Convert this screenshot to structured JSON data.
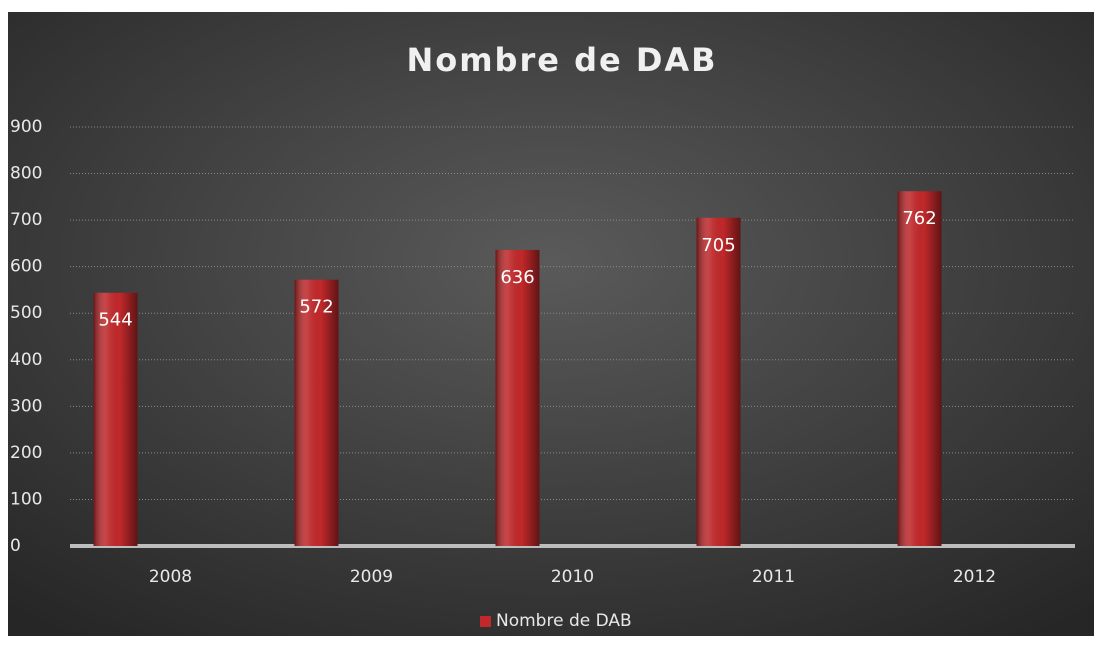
{
  "chart_data": {
    "type": "bar",
    "title": "Nombre de DAB",
    "categories": [
      "2008",
      "2009",
      "2010",
      "2011",
      "2012"
    ],
    "series": [
      {
        "name": "Nombre de DAB",
        "color": "#c0282a",
        "values": [
          544,
          572,
          636,
          705,
          762
        ]
      }
    ],
    "ylim": [
      0,
      900
    ],
    "yticks": [
      0,
      100,
      200,
      300,
      400,
      500,
      600,
      700,
      800,
      900
    ],
    "grid": true,
    "legend": "bottom"
  }
}
